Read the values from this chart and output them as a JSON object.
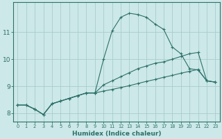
{
  "xlabel": "Humidex (Indice chaleur)",
  "background_color": "#cce8e8",
  "grid_color": "#aacccc",
  "line_color": "#2d7068",
  "x_values": [
    0,
    1,
    2,
    3,
    4,
    5,
    6,
    7,
    8,
    9,
    10,
    11,
    12,
    13,
    14,
    15,
    16,
    17,
    18,
    19,
    20,
    21,
    22,
    23
  ],
  "line1": [
    8.3,
    8.3,
    8.15,
    7.95,
    8.35,
    8.45,
    8.55,
    8.65,
    8.75,
    8.75,
    10.0,
    11.05,
    11.55,
    11.7,
    11.65,
    11.55,
    11.3,
    11.1,
    10.45,
    10.2,
    9.65,
    9.6,
    9.2,
    9.15
  ],
  "line2": [
    8.3,
    8.3,
    8.15,
    7.95,
    8.35,
    8.45,
    8.55,
    8.65,
    8.75,
    8.75,
    9.05,
    9.2,
    9.35,
    9.5,
    9.65,
    9.75,
    9.85,
    9.9,
    10.0,
    10.1,
    10.2,
    10.25,
    9.2,
    9.15
  ],
  "line3": [
    8.3,
    8.3,
    8.15,
    7.95,
    8.35,
    8.45,
    8.55,
    8.65,
    8.75,
    8.75,
    8.82,
    8.88,
    8.95,
    9.02,
    9.1,
    9.18,
    9.25,
    9.33,
    9.4,
    9.48,
    9.55,
    9.62,
    9.2,
    9.15
  ],
  "ylim": [
    7.7,
    12.1
  ],
  "xlim": [
    -0.5,
    23.5
  ],
  "yticks": [
    8,
    9,
    10,
    11
  ],
  "xticks": [
    0,
    1,
    2,
    3,
    4,
    5,
    6,
    7,
    8,
    9,
    10,
    11,
    12,
    13,
    14,
    15,
    16,
    17,
    18,
    19,
    20,
    21,
    22,
    23
  ]
}
